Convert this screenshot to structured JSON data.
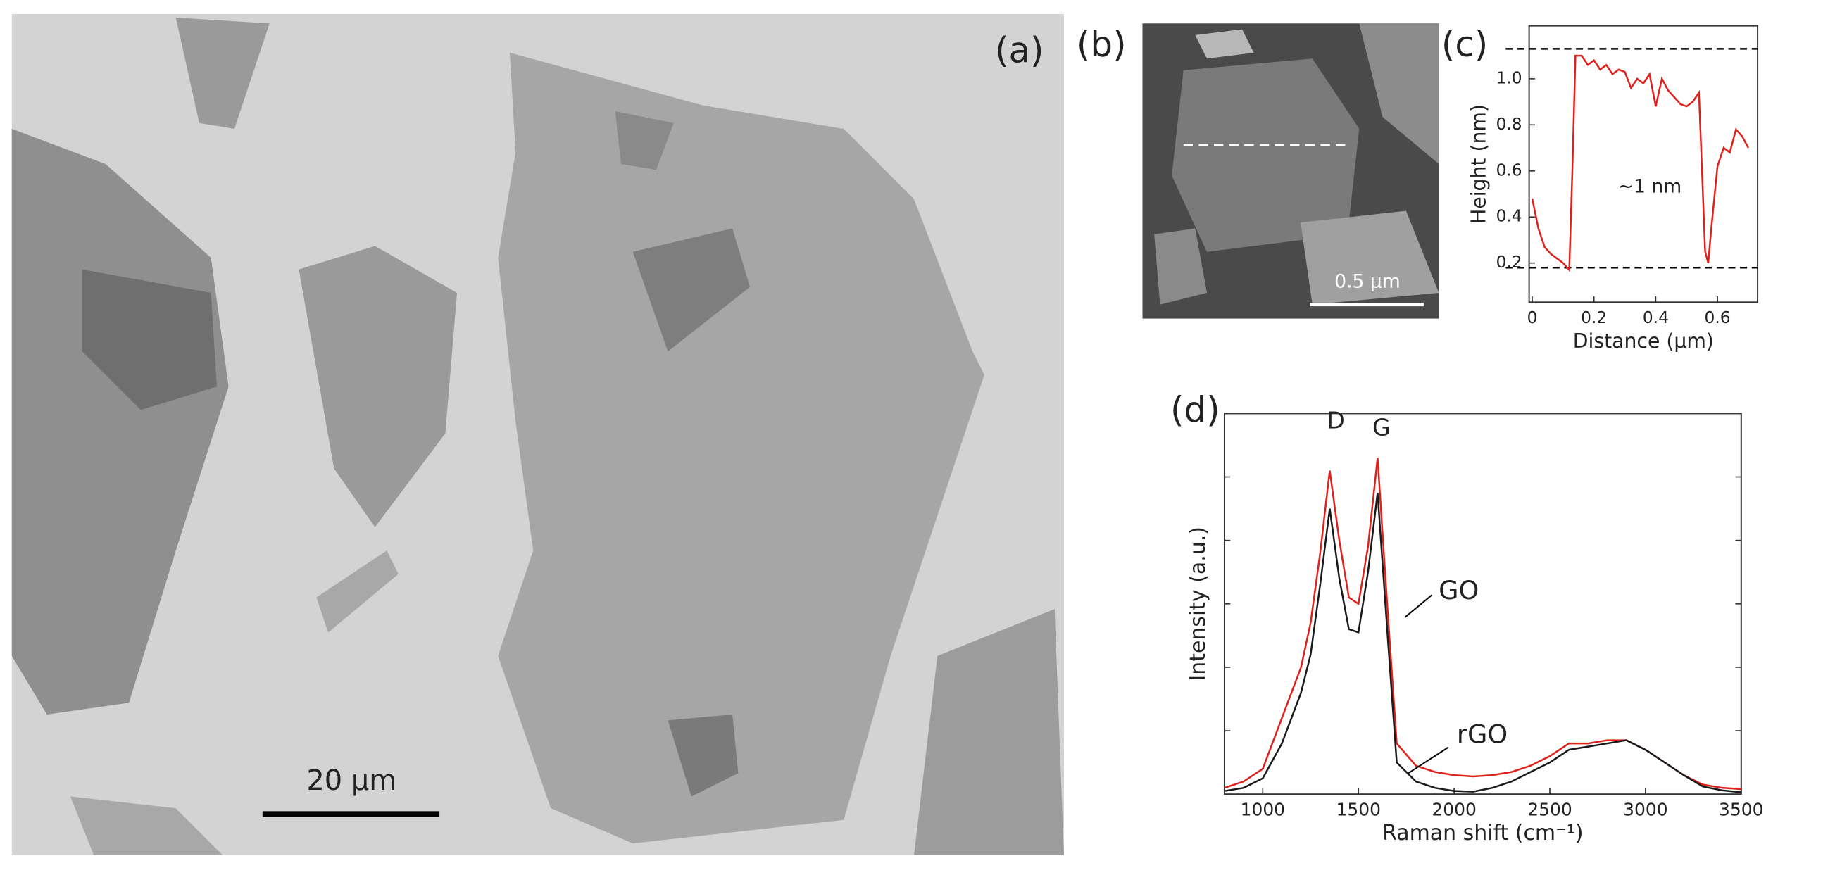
{
  "panels": {
    "a": {
      "label": "(a)",
      "scale_bar": "20 µm"
    },
    "b": {
      "label": "(b)",
      "scale_bar": "0.5 µm"
    }
  },
  "chart_data": [
    {
      "type": "line",
      "panel_label": "(c)",
      "x_label": "Distance (µm)",
      "y_label": "Height (nm)",
      "annotation": "~1 nm",
      "x": [
        0,
        0.02,
        0.04,
        0.06,
        0.08,
        0.1,
        0.12,
        0.13,
        0.14,
        0.16,
        0.18,
        0.2,
        0.22,
        0.24,
        0.26,
        0.28,
        0.3,
        0.32,
        0.34,
        0.36,
        0.38,
        0.4,
        0.42,
        0.44,
        0.46,
        0.48,
        0.5,
        0.52,
        0.54,
        0.55,
        0.56,
        0.57,
        0.58,
        0.6,
        0.62,
        0.64,
        0.66,
        0.68,
        0.7
      ],
      "values": [
        0.48,
        0.35,
        0.27,
        0.24,
        0.22,
        0.2,
        0.17,
        0.6,
        1.1,
        1.1,
        1.06,
        1.08,
        1.04,
        1.06,
        1.02,
        1.04,
        1.03,
        0.96,
        1.0,
        0.98,
        1.02,
        0.88,
        1.0,
        0.95,
        0.92,
        0.89,
        0.88,
        0.9,
        0.94,
        0.6,
        0.25,
        0.2,
        0.35,
        0.62,
        0.7,
        0.68,
        0.78,
        0.75,
        0.7
      ],
      "color": "#e0201b",
      "reference_lines": [
        1.13,
        0.18
      ],
      "xlim": [
        -0.01,
        0.73
      ],
      "ylim": [
        0.03,
        1.23
      ],
      "xticks": [
        0,
        0.2,
        0.4,
        0.6
      ],
      "yticks": [
        0.2,
        0.4,
        0.6,
        0.8,
        {
          "value": 1,
          "label": "1.0"
        }
      ]
    },
    {
      "type": "line",
      "panel_label": "(d)",
      "x_label": "Raman shift (cm⁻¹)",
      "y_label": "Intensity (a.u.)",
      "x": [
        800,
        900,
        1000,
        1100,
        1200,
        1250,
        1300,
        1350,
        1400,
        1450,
        1500,
        1550,
        1600,
        1650,
        1700,
        1800,
        1900,
        2000,
        2100,
        2200,
        2300,
        2400,
        2500,
        2600,
        2700,
        2800,
        2900,
        3000,
        3100,
        3200,
        3300,
        3400,
        3500
      ],
      "series": [
        {
          "name": "rGO",
          "color": "#e0201b",
          "values": [
            0.1,
            0.2,
            0.4,
            1.2,
            2.0,
            2.7,
            3.8,
            5.1,
            4.0,
            3.1,
            3.0,
            3.9,
            5.3,
            3.0,
            0.8,
            0.45,
            0.35,
            0.3,
            0.28,
            0.3,
            0.35,
            0.45,
            0.6,
            0.8,
            0.8,
            0.85,
            0.85,
            0.7,
            0.5,
            0.3,
            0.15,
            0.1,
            0.08
          ]
        },
        {
          "name": "GO",
          "color": "#1a1a1a",
          "values": [
            0.05,
            0.1,
            0.25,
            0.8,
            1.6,
            2.2,
            3.3,
            4.5,
            3.4,
            2.6,
            2.55,
            3.5,
            4.75,
            2.6,
            0.5,
            0.2,
            0.1,
            0.05,
            0.04,
            0.1,
            0.2,
            0.35,
            0.5,
            0.7,
            0.75,
            0.8,
            0.85,
            0.7,
            0.5,
            0.3,
            0.12,
            0.06,
            0.03
          ]
        }
      ],
      "annotations": [
        "D",
        "G"
      ],
      "xlim": [
        800,
        3500
      ],
      "ylim": [
        0,
        6
      ],
      "xticks": [
        1000,
        1500,
        2000,
        2500,
        3000,
        3500
      ],
      "yticks": [
        1,
        2,
        3,
        4,
        5
      ]
    }
  ]
}
